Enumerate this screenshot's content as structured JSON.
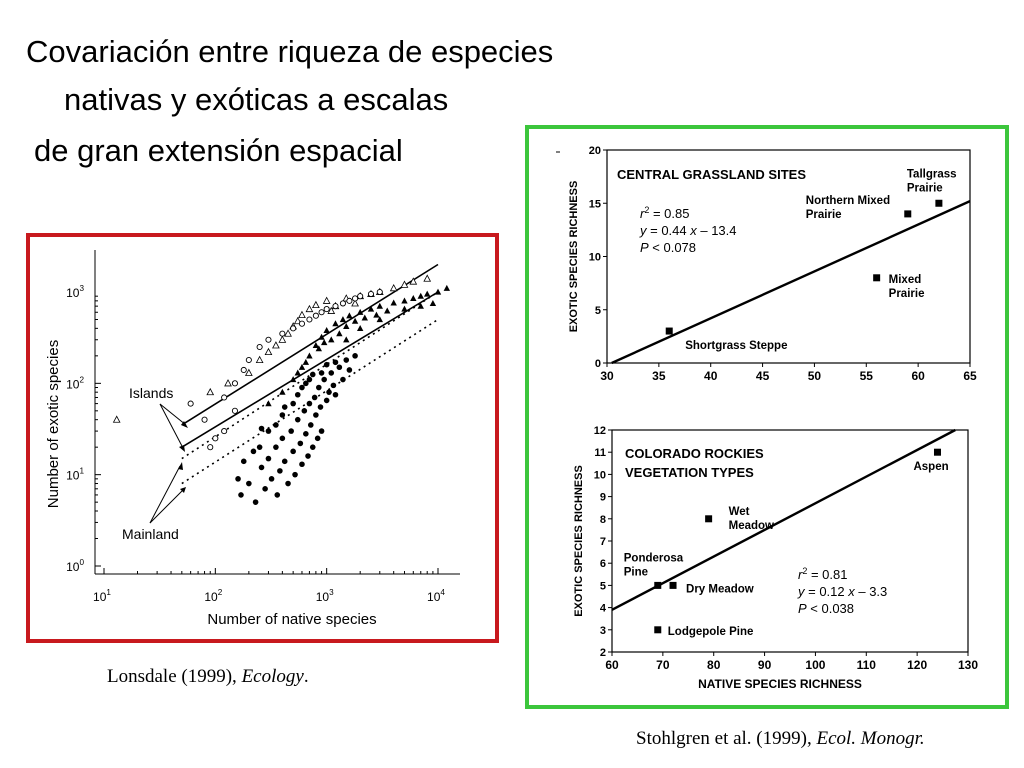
{
  "page": {
    "title_lines": [
      "Covariación entre riqueza de especies",
      "nativas y exóticas a escalas",
      "de gran extensión espacial"
    ],
    "citation_left": {
      "authors": "Lonsdale (1999), ",
      "journal": "Ecology",
      "tail": "."
    },
    "citation_right": {
      "authors": "Stohlgren et al. (1999), ",
      "journal": "Ecol. Monogr.",
      "tail": ""
    },
    "colors": {
      "left_frame": "#c8191e",
      "right_frame": "#3cc63c"
    }
  },
  "chart_data": [
    {
      "type": "scatter",
      "xlabel": "Number of native species",
      "ylabel": "Number of exotic species",
      "xscale": "log",
      "yscale": "log",
      "xlim": [
        10,
        10000
      ],
      "ylim": [
        1,
        1000
      ],
      "x_ticks": [
        {
          "base": "10",
          "exp": "1"
        },
        {
          "base": "10",
          "exp": "2"
        },
        {
          "base": "10",
          "exp": "3"
        },
        {
          "base": "10",
          "exp": "4"
        }
      ],
      "y_ticks": [
        {
          "base": "10",
          "exp": "0"
        },
        {
          "base": "10",
          "exp": "1"
        },
        {
          "base": "10",
          "exp": "2"
        },
        {
          "base": "10",
          "exp": "3"
        }
      ],
      "annotations": [
        "Islands",
        "Mainland"
      ],
      "series": [
        {
          "marker": "filled-circle",
          "points": [
            [
              200,
              8
            ],
            [
              230,
              5
            ],
            [
              260,
              12
            ],
            [
              280,
              7
            ],
            [
              300,
              15
            ],
            [
              320,
              9
            ],
            [
              350,
              20
            ],
            [
              360,
              6
            ],
            [
              380,
              11
            ],
            [
              400,
              25
            ],
            [
              420,
              14
            ],
            [
              450,
              8
            ],
            [
              480,
              30
            ],
            [
              500,
              18
            ],
            [
              520,
              10
            ],
            [
              550,
              40
            ],
            [
              580,
              22
            ],
            [
              600,
              13
            ],
            [
              630,
              50
            ],
            [
              650,
              28
            ],
            [
              680,
              16
            ],
            [
              700,
              60
            ],
            [
              720,
              35
            ],
            [
              750,
              20
            ],
            [
              780,
              70
            ],
            [
              800,
              45
            ],
            [
              830,
              25
            ],
            [
              850,
              90
            ],
            [
              880,
              55
            ],
            [
              900,
              30
            ],
            [
              950,
              110
            ],
            [
              1000,
              65
            ],
            [
              1050,
              80
            ],
            [
              1100,
              130
            ],
            [
              1150,
              95
            ],
            [
              1200,
              75
            ],
            [
              1300,
              150
            ],
            [
              1400,
              110
            ],
            [
              1500,
              180
            ],
            [
              1600,
              140
            ],
            [
              1800,
              200
            ],
            [
              300,
              30
            ],
            [
              400,
              45
            ],
            [
              500,
              60
            ],
            [
              250,
              20
            ],
            [
              350,
              35
            ],
            [
              600,
              90
            ],
            [
              700,
              110
            ],
            [
              900,
              130
            ],
            [
              1200,
              170
            ],
            [
              160,
              9
            ],
            [
              180,
              14
            ],
            [
              220,
              18
            ],
            [
              170,
              6
            ],
            [
              260,
              32
            ],
            [
              420,
              55
            ],
            [
              550,
              75
            ],
            [
              650,
              100
            ],
            [
              750,
              125
            ],
            [
              1000,
              160
            ]
          ]
        },
        {
          "marker": "filled-triangle",
          "points": [
            [
              300,
              60
            ],
            [
              400,
              80
            ],
            [
              500,
              110
            ],
            [
              600,
              150
            ],
            [
              700,
              200
            ],
            [
              800,
              260
            ],
            [
              900,
              320
            ],
            [
              1000,
              380
            ],
            [
              1100,
              300
            ],
            [
              1200,
              450
            ],
            [
              1300,
              350
            ],
            [
              1400,
              500
            ],
            [
              1500,
              420
            ],
            [
              1600,
              550
            ],
            [
              1800,
              480
            ],
            [
              2000,
              600
            ],
            [
              2200,
              520
            ],
            [
              2500,
              650
            ],
            [
              2800,
              560
            ],
            [
              3000,
              700
            ],
            [
              3500,
              620
            ],
            [
              4000,
              760
            ],
            [
              5000,
              800
            ],
            [
              6000,
              850
            ],
            [
              7000,
              900
            ],
            [
              8000,
              950
            ],
            [
              10000,
              1000
            ],
            [
              12000,
              1100
            ],
            [
              550,
              130
            ],
            [
              650,
              170
            ],
            [
              850,
              240
            ],
            [
              950,
              280
            ],
            [
              1500,
              300
            ],
            [
              2000,
              400
            ],
            [
              3000,
              500
            ],
            [
              5000,
              650
            ],
            [
              7000,
              700
            ],
            [
              9000,
              750
            ]
          ]
        },
        {
          "marker": "open-triangle",
          "points": [
            [
              13,
              40
            ],
            [
              90,
              80
            ],
            [
              130,
              100
            ],
            [
              200,
              130
            ],
            [
              250,
              180
            ],
            [
              300,
              220
            ],
            [
              350,
              260
            ],
            [
              400,
              300
            ],
            [
              450,
              350
            ],
            [
              500,
              420
            ],
            [
              550,
              480
            ],
            [
              600,
              560
            ],
            [
              700,
              650
            ],
            [
              800,
              720
            ],
            [
              1000,
              800
            ],
            [
              1200,
              700
            ],
            [
              1500,
              850
            ],
            [
              2000,
              900
            ],
            [
              2500,
              950
            ],
            [
              3000,
              1000
            ],
            [
              4000,
              1100
            ],
            [
              5000,
              1200
            ],
            [
              6000,
              1300
            ],
            [
              8000,
              1400
            ],
            [
              1800,
              750
            ],
            [
              1100,
              620
            ]
          ]
        },
        {
          "marker": "open-circle",
          "points": [
            [
              60,
              60
            ],
            [
              80,
              40
            ],
            [
              100,
              25
            ],
            [
              120,
              70
            ],
            [
              150,
              100
            ],
            [
              180,
              140
            ],
            [
              200,
              180
            ],
            [
              250,
              250
            ],
            [
              300,
              300
            ],
            [
              400,
              350
            ],
            [
              500,
              400
            ],
            [
              600,
              450
            ],
            [
              700,
              500
            ],
            [
              800,
              550
            ],
            [
              900,
              600
            ],
            [
              1000,
              650
            ],
            [
              1200,
              700
            ],
            [
              1400,
              750
            ],
            [
              1600,
              800
            ],
            [
              1800,
              850
            ],
            [
              2000,
              900
            ],
            [
              2500,
              950
            ],
            [
              3000,
              1000
            ],
            [
              120,
              30
            ],
            [
              90,
              20
            ],
            [
              150,
              50
            ]
          ]
        }
      ],
      "fit_lines": [
        {
          "name": "Islands",
          "style": "solid",
          "from": [
            50,
            35
          ],
          "to": [
            10000,
            2000
          ]
        },
        {
          "name": "Islands",
          "style": "dotted",
          "from": [
            50,
            15
          ],
          "to": [
            10000,
            1000
          ]
        },
        {
          "name": "Mainland",
          "style": "solid",
          "from": [
            50,
            20
          ],
          "to": [
            10000,
            1000
          ]
        },
        {
          "name": "Mainland",
          "style": "dotted",
          "from": [
            50,
            8
          ],
          "to": [
            10000,
            500
          ]
        }
      ]
    },
    {
      "type": "scatter",
      "title": "CENTRAL GRASSLAND SITES",
      "ylabel": "EXOTIC SPECIES RICHNESS",
      "xlim": [
        30,
        65
      ],
      "ylim": [
        0,
        20
      ],
      "x_ticks": [
        30,
        35,
        40,
        45,
        50,
        55,
        60,
        65
      ],
      "y_ticks": [
        0,
        5,
        10,
        15,
        20
      ],
      "stats": {
        "r2": "= 0.85",
        "eq": "= 0.44",
        "eq_rest": "– 13.4",
        "p": "< 0.078"
      },
      "points": [
        {
          "x": 36,
          "y": 3,
          "label": [
            "Shortgrass  Steppe"
          ]
        },
        {
          "x": 56,
          "y": 8,
          "label": [
            "Mixed",
            "Prairie"
          ]
        },
        {
          "x": 59,
          "y": 14,
          "label": [
            "Northern Mixed",
            "Prairie"
          ]
        },
        {
          "x": 62,
          "y": 15,
          "label": [
            "Tallgrass",
            "Prairie"
          ]
        }
      ],
      "fit_line": {
        "slope": 0.44,
        "intercept": -13.4
      }
    },
    {
      "type": "scatter",
      "title_lines": [
        "COLORADO ROCKIES",
        "VEGETATION TYPES"
      ],
      "xlabel": "NATIVE SPECIES RICHNESS",
      "ylabel": "EXOTIC SPECIES RICHNESS",
      "xlim": [
        60,
        130
      ],
      "ylim": [
        2,
        12
      ],
      "x_ticks": [
        60,
        70,
        80,
        90,
        100,
        110,
        120,
        130
      ],
      "y_ticks": [
        2,
        3,
        4,
        5,
        6,
        7,
        8,
        9,
        10,
        11,
        12
      ],
      "stats": {
        "r2": "= 0.81",
        "eq": "= 0.12",
        "eq_rest": "– 3.3",
        "p": "< 0.038"
      },
      "points": [
        {
          "x": 69,
          "y": 3,
          "label": [
            "Lodgepole Pine"
          ]
        },
        {
          "x": 69,
          "y": 5,
          "label": [
            "Ponderosa",
            "Pine"
          ]
        },
        {
          "x": 72,
          "y": 5,
          "label": [
            "Dry Meadow"
          ]
        },
        {
          "x": 79,
          "y": 8,
          "label": [
            "Wet",
            "Meadow"
          ]
        },
        {
          "x": 124,
          "y": 11,
          "label": [
            "Aspen"
          ]
        }
      ],
      "fit_line": {
        "slope": 0.12,
        "intercept": -3.3
      }
    }
  ]
}
